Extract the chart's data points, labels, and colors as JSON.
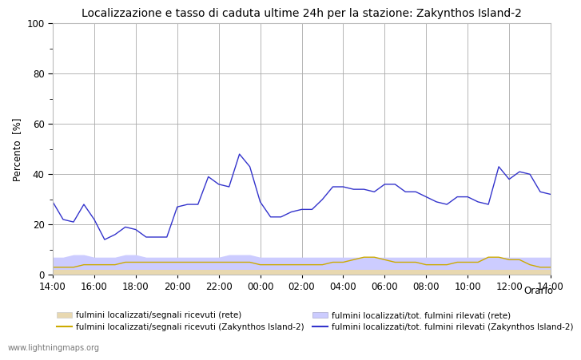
{
  "title": "Localizzazione e tasso di caduta ultime 24h per la stazione: Zakynthos Island-2",
  "ylabel": "Percento  [%]",
  "xlabel_right": "Orario",
  "watermark": "www.lightningmaps.org",
  "ylim": [
    0,
    100
  ],
  "xtick_labels": [
    "14:00",
    "16:00",
    "18:00",
    "20:00",
    "22:00",
    "00:00",
    "02:00",
    "04:00",
    "06:00",
    "08:00",
    "10:00",
    "12:00",
    "14:00"
  ],
  "ytick_major": [
    0,
    20,
    40,
    60,
    80,
    100
  ],
  "ytick_minor": [
    10,
    30,
    50,
    70,
    90
  ],
  "blue_line": [
    29,
    22,
    21,
    28,
    22,
    14,
    16,
    19,
    18,
    15,
    15,
    15,
    27,
    28,
    28,
    39,
    36,
    35,
    48,
    43,
    29,
    23,
    23,
    25,
    26,
    26,
    30,
    35,
    35,
    34,
    34,
    33,
    36,
    36,
    33,
    33,
    31,
    29,
    28,
    31,
    31,
    29,
    28,
    43,
    38,
    41,
    40,
    33,
    32
  ],
  "orange_line": [
    3,
    3,
    3,
    4,
    4,
    4,
    4,
    5,
    5,
    5,
    5,
    5,
    5,
    5,
    5,
    5,
    5,
    5,
    5,
    5,
    4,
    4,
    4,
    4,
    4,
    4,
    4,
    5,
    5,
    6,
    7,
    7,
    6,
    5,
    5,
    5,
    4,
    4,
    4,
    5,
    5,
    5,
    7,
    7,
    6,
    6,
    4,
    3,
    3
  ],
  "blue_fill": [
    7,
    7,
    8,
    8,
    7,
    7,
    7,
    8,
    8,
    7,
    7,
    7,
    7,
    7,
    7,
    7,
    7,
    8,
    8,
    8,
    7,
    7,
    7,
    7,
    7,
    7,
    7,
    7,
    7,
    7,
    7,
    7,
    7,
    7,
    7,
    7,
    7,
    7,
    7,
    7,
    7,
    7,
    7,
    7,
    7,
    7,
    7,
    7,
    7
  ],
  "tan_fill": [
    2,
    2,
    2,
    2,
    2,
    2,
    2,
    2,
    2,
    2,
    2,
    2,
    2,
    2,
    2,
    2,
    2,
    2,
    2,
    2,
    2,
    2,
    2,
    2,
    2,
    2,
    2,
    2,
    2,
    2,
    2,
    2,
    2,
    2,
    2,
    2,
    2,
    2,
    2,
    2,
    2,
    2,
    2,
    2,
    2,
    2,
    2,
    2,
    2
  ],
  "color_blue_line": "#3333cc",
  "color_orange_line": "#ccaa00",
  "color_blue_fill": "#ccccff",
  "color_tan_fill": "#e8d8b0",
  "legend_entries": [
    "fulmini localizzati/segnali ricevuti (rete)",
    "fulmini localizzati/segnali ricevuti (Zakynthos Island-2)",
    "fulmini localizzati/tot. fulmini rilevati (rete)",
    "fulmini localizzati/tot. fulmini rilevati (Zakynthos Island-2)"
  ],
  "background_color": "#ffffff",
  "plot_bg_color": "#ffffff",
  "grid_color": "#aaaaaa"
}
